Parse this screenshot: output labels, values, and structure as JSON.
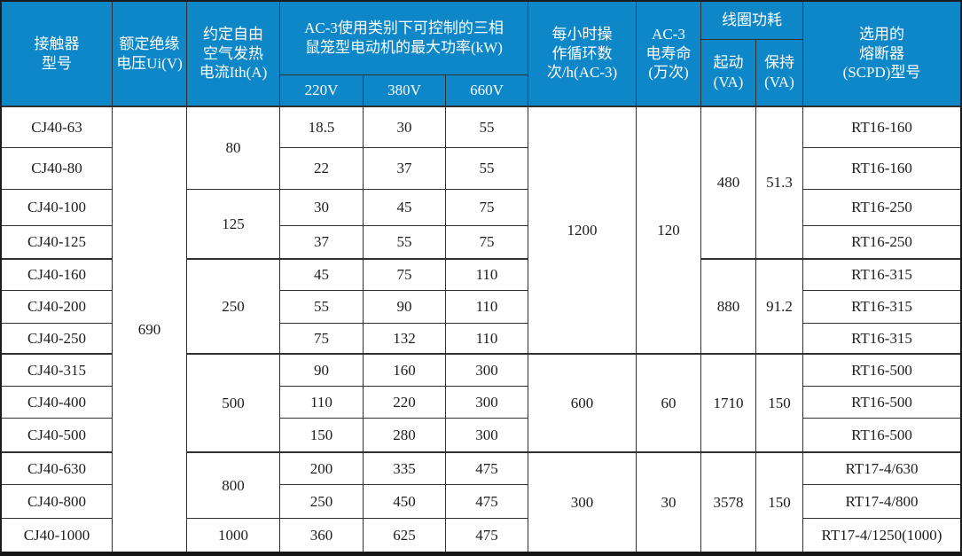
{
  "colors": {
    "header_bg": "#0E87C9",
    "header_text": "#FFFFFF",
    "body_text": "#1D1D1D",
    "grid_line": "#303030",
    "outer_border": "#1B1B1B"
  },
  "table": {
    "header_cells": [
      {
        "name": "col-header-contactor-model",
        "text": "接触器\n型号",
        "r": 1,
        "c": 1,
        "rs": 3,
        "cs": 1
      },
      {
        "name": "col-header-rated-insulation-voltage",
        "text": "额定绝缘\n电压Ui(V)",
        "r": 1,
        "c": 2,
        "rs": 3,
        "cs": 1
      },
      {
        "name": "col-header-thermal-current",
        "text": "约定自由\n空气发热\n电流Ith(A)",
        "r": 1,
        "c": 3,
        "rs": 3,
        "cs": 1
      },
      {
        "name": "col-header-ac3-max-power",
        "text": "AC-3使用类别下可控制的三相\n鼠笼型电动机的最大功率(kW)",
        "r": 1,
        "c": 4,
        "rs": 2,
        "cs": 3
      },
      {
        "name": "col-header-220v",
        "text": "220V",
        "r": 3,
        "c": 4,
        "rs": 1,
        "cs": 1
      },
      {
        "name": "col-header-380v",
        "text": "380V",
        "r": 3,
        "c": 5,
        "rs": 1,
        "cs": 1
      },
      {
        "name": "col-header-660v",
        "text": "660V",
        "r": 3,
        "c": 6,
        "rs": 1,
        "cs": 1
      },
      {
        "name": "col-header-operating-cycles",
        "text": "每小时操\n作循环数\n次/h(AC-3)",
        "r": 1,
        "c": 7,
        "rs": 3,
        "cs": 1
      },
      {
        "name": "col-header-electrical-life",
        "text": "AC-3\n电寿命\n(万次)",
        "r": 1,
        "c": 8,
        "rs": 3,
        "cs": 1
      },
      {
        "name": "col-header-coil-consumption",
        "text": "线圈功耗",
        "r": 1,
        "c": 9,
        "rs": 1,
        "cs": 2
      },
      {
        "name": "col-header-coil-start",
        "text": "起动\n(VA)",
        "r": 2,
        "c": 9,
        "rs": 2,
        "cs": 1
      },
      {
        "name": "col-header-coil-hold",
        "text": "保持\n(VA)",
        "r": 2,
        "c": 10,
        "rs": 2,
        "cs": 1
      },
      {
        "name": "col-header-fuse-type",
        "text": "选用的\n熔断器\n(SCPD)型号",
        "r": 1,
        "c": 11,
        "rs": 3,
        "cs": 1
      }
    ],
    "body_cells": [
      {
        "name": "model-cj40-63",
        "text": "CJ40-63",
        "r": 4,
        "c": 1,
        "rs": 1,
        "cs": 1
      },
      {
        "name": "model-cj40-80",
        "text": "CJ40-80",
        "r": 5,
        "c": 1,
        "rs": 1,
        "cs": 1
      },
      {
        "name": "model-cj40-100",
        "text": "CJ40-100",
        "r": 6,
        "c": 1,
        "rs": 1,
        "cs": 1
      },
      {
        "name": "model-cj40-125",
        "text": "CJ40-125",
        "r": 7,
        "c": 1,
        "rs": 1,
        "cs": 1
      },
      {
        "name": "model-cj40-160",
        "text": "CJ40-160",
        "r": 8,
        "c": 1,
        "rs": 1,
        "cs": 1
      },
      {
        "name": "model-cj40-200",
        "text": "CJ40-200",
        "r": 9,
        "c": 1,
        "rs": 1,
        "cs": 1
      },
      {
        "name": "model-cj40-250",
        "text": "CJ40-250",
        "r": 10,
        "c": 1,
        "rs": 1,
        "cs": 1
      },
      {
        "name": "model-cj40-315",
        "text": "CJ40-315",
        "r": 11,
        "c": 1,
        "rs": 1,
        "cs": 1
      },
      {
        "name": "model-cj40-400",
        "text": "CJ40-400",
        "r": 12,
        "c": 1,
        "rs": 1,
        "cs": 1
      },
      {
        "name": "model-cj40-500",
        "text": "CJ40-500",
        "r": 13,
        "c": 1,
        "rs": 1,
        "cs": 1
      },
      {
        "name": "model-cj40-630",
        "text": "CJ40-630",
        "r": 14,
        "c": 1,
        "rs": 1,
        "cs": 1
      },
      {
        "name": "model-cj40-800",
        "text": "CJ40-800",
        "r": 15,
        "c": 1,
        "rs": 1,
        "cs": 1
      },
      {
        "name": "model-cj40-1000",
        "text": "CJ40-1000",
        "r": 16,
        "c": 1,
        "rs": 1,
        "cs": 1
      },
      {
        "name": "rated-voltage-690",
        "text": "690",
        "r": 4,
        "c": 2,
        "rs": 13,
        "cs": 1
      },
      {
        "name": "ith-group-80",
        "text": "80",
        "r": 4,
        "c": 3,
        "rs": 2,
        "cs": 1
      },
      {
        "name": "ith-group-125",
        "text": "125",
        "r": 6,
        "c": 3,
        "rs": 2,
        "cs": 1
      },
      {
        "name": "ith-group-250",
        "text": "250",
        "r": 8,
        "c": 3,
        "rs": 3,
        "cs": 1
      },
      {
        "name": "ith-group-500",
        "text": "500",
        "r": 11,
        "c": 3,
        "rs": 3,
        "cs": 1
      },
      {
        "name": "ith-group-800",
        "text": "800",
        "r": 14,
        "c": 3,
        "rs": 2,
        "cs": 1
      },
      {
        "name": "ith-group-1000",
        "text": "1000",
        "r": 16,
        "c": 3,
        "rs": 1,
        "cs": 1
      },
      {
        "name": "power-220v-cj40-63",
        "text": "18.5",
        "r": 4,
        "c": 4,
        "rs": 1,
        "cs": 1
      },
      {
        "name": "power-380v-cj40-63",
        "text": "30",
        "r": 4,
        "c": 5,
        "rs": 1,
        "cs": 1
      },
      {
        "name": "power-660v-cj40-63",
        "text": "55",
        "r": 4,
        "c": 6,
        "rs": 1,
        "cs": 1
      },
      {
        "name": "power-220v-cj40-80",
        "text": "22",
        "r": 5,
        "c": 4,
        "rs": 1,
        "cs": 1
      },
      {
        "name": "power-380v-cj40-80",
        "text": "37",
        "r": 5,
        "c": 5,
        "rs": 1,
        "cs": 1
      },
      {
        "name": "power-660v-cj40-80",
        "text": "55",
        "r": 5,
        "c": 6,
        "rs": 1,
        "cs": 1
      },
      {
        "name": "power-220v-cj40-100",
        "text": "30",
        "r": 6,
        "c": 4,
        "rs": 1,
        "cs": 1
      },
      {
        "name": "power-380v-cj40-100",
        "text": "45",
        "r": 6,
        "c": 5,
        "rs": 1,
        "cs": 1
      },
      {
        "name": "power-660v-cj40-100",
        "text": "75",
        "r": 6,
        "c": 6,
        "rs": 1,
        "cs": 1
      },
      {
        "name": "power-220v-cj40-125",
        "text": "37",
        "r": 7,
        "c": 4,
        "rs": 1,
        "cs": 1
      },
      {
        "name": "power-380v-cj40-125",
        "text": "55",
        "r": 7,
        "c": 5,
        "rs": 1,
        "cs": 1
      },
      {
        "name": "power-660v-cj40-125",
        "text": "75",
        "r": 7,
        "c": 6,
        "rs": 1,
        "cs": 1
      },
      {
        "name": "power-220v-cj40-160",
        "text": "45",
        "r": 8,
        "c": 4,
        "rs": 1,
        "cs": 1
      },
      {
        "name": "power-380v-cj40-160",
        "text": "75",
        "r": 8,
        "c": 5,
        "rs": 1,
        "cs": 1
      },
      {
        "name": "power-660v-cj40-160",
        "text": "110",
        "r": 8,
        "c": 6,
        "rs": 1,
        "cs": 1
      },
      {
        "name": "power-220v-cj40-200",
        "text": "55",
        "r": 9,
        "c": 4,
        "rs": 1,
        "cs": 1
      },
      {
        "name": "power-380v-cj40-200",
        "text": "90",
        "r": 9,
        "c": 5,
        "rs": 1,
        "cs": 1
      },
      {
        "name": "power-660v-cj40-200",
        "text": "110",
        "r": 9,
        "c": 6,
        "rs": 1,
        "cs": 1
      },
      {
        "name": "power-220v-cj40-250",
        "text": "75",
        "r": 10,
        "c": 4,
        "rs": 1,
        "cs": 1
      },
      {
        "name": "power-380v-cj40-250",
        "text": "132",
        "r": 10,
        "c": 5,
        "rs": 1,
        "cs": 1
      },
      {
        "name": "power-660v-cj40-250",
        "text": "110",
        "r": 10,
        "c": 6,
        "rs": 1,
        "cs": 1
      },
      {
        "name": "power-220v-cj40-315",
        "text": "90",
        "r": 11,
        "c": 4,
        "rs": 1,
        "cs": 1
      },
      {
        "name": "power-380v-cj40-315",
        "text": "160",
        "r": 11,
        "c": 5,
        "rs": 1,
        "cs": 1
      },
      {
        "name": "power-660v-cj40-315",
        "text": "300",
        "r": 11,
        "c": 6,
        "rs": 1,
        "cs": 1
      },
      {
        "name": "power-220v-cj40-400",
        "text": "110",
        "r": 12,
        "c": 4,
        "rs": 1,
        "cs": 1
      },
      {
        "name": "power-380v-cj40-400",
        "text": "220",
        "r": 12,
        "c": 5,
        "rs": 1,
        "cs": 1
      },
      {
        "name": "power-660v-cj40-400",
        "text": "300",
        "r": 12,
        "c": 6,
        "rs": 1,
        "cs": 1
      },
      {
        "name": "power-220v-cj40-500",
        "text": "150",
        "r": 13,
        "c": 4,
        "rs": 1,
        "cs": 1
      },
      {
        "name": "power-380v-cj40-500",
        "text": "280",
        "r": 13,
        "c": 5,
        "rs": 1,
        "cs": 1
      },
      {
        "name": "power-660v-cj40-500",
        "text": "300",
        "r": 13,
        "c": 6,
        "rs": 1,
        "cs": 1
      },
      {
        "name": "power-220v-cj40-630",
        "text": "200",
        "r": 14,
        "c": 4,
        "rs": 1,
        "cs": 1
      },
      {
        "name": "power-380v-cj40-630",
        "text": "335",
        "r": 14,
        "c": 5,
        "rs": 1,
        "cs": 1
      },
      {
        "name": "power-660v-cj40-630",
        "text": "475",
        "r": 14,
        "c": 6,
        "rs": 1,
        "cs": 1
      },
      {
        "name": "power-220v-cj40-800",
        "text": "250",
        "r": 15,
        "c": 4,
        "rs": 1,
        "cs": 1
      },
      {
        "name": "power-380v-cj40-800",
        "text": "450",
        "r": 15,
        "c": 5,
        "rs": 1,
        "cs": 1
      },
      {
        "name": "power-660v-cj40-800",
        "text": "475",
        "r": 15,
        "c": 6,
        "rs": 1,
        "cs": 1
      },
      {
        "name": "power-220v-cj40-1000",
        "text": "360",
        "r": 16,
        "c": 4,
        "rs": 1,
        "cs": 1
      },
      {
        "name": "power-380v-cj40-1000",
        "text": "625",
        "r": 16,
        "c": 5,
        "rs": 1,
        "cs": 1
      },
      {
        "name": "power-660v-cj40-1000",
        "text": "475",
        "r": 16,
        "c": 6,
        "rs": 1,
        "cs": 1
      },
      {
        "name": "cycles-group-1200",
        "text": "1200",
        "r": 4,
        "c": 7,
        "rs": 7,
        "cs": 1
      },
      {
        "name": "cycles-group-600",
        "text": "600",
        "r": 11,
        "c": 7,
        "rs": 3,
        "cs": 1
      },
      {
        "name": "cycles-group-300",
        "text": "300",
        "r": 14,
        "c": 7,
        "rs": 3,
        "cs": 1
      },
      {
        "name": "life-group-120",
        "text": "120",
        "r": 4,
        "c": 8,
        "rs": 7,
        "cs": 1
      },
      {
        "name": "life-group-60",
        "text": "60",
        "r": 11,
        "c": 8,
        "rs": 3,
        "cs": 1
      },
      {
        "name": "life-group-30",
        "text": "30",
        "r": 14,
        "c": 8,
        "rs": 3,
        "cs": 1
      },
      {
        "name": "coil-start-group-480",
        "text": "480",
        "r": 4,
        "c": 9,
        "rs": 4,
        "cs": 1
      },
      {
        "name": "coil-start-group-880",
        "text": "880",
        "r": 8,
        "c": 9,
        "rs": 3,
        "cs": 1
      },
      {
        "name": "coil-start-group-1710",
        "text": "1710",
        "r": 11,
        "c": 9,
        "rs": 3,
        "cs": 1
      },
      {
        "name": "coil-start-group-3578",
        "text": "3578",
        "r": 14,
        "c": 9,
        "rs": 3,
        "cs": 1
      },
      {
        "name": "coil-hold-group-51-3",
        "text": "51.3",
        "r": 4,
        "c": 10,
        "rs": 4,
        "cs": 1
      },
      {
        "name": "coil-hold-group-91-2",
        "text": "91.2",
        "r": 8,
        "c": 10,
        "rs": 3,
        "cs": 1
      },
      {
        "name": "coil-hold-group-150-a",
        "text": "150",
        "r": 11,
        "c": 10,
        "rs": 3,
        "cs": 1
      },
      {
        "name": "coil-hold-group-150-b",
        "text": "150",
        "r": 14,
        "c": 10,
        "rs": 3,
        "cs": 1
      },
      {
        "name": "fuse-cj40-63",
        "text": "RT16-160",
        "r": 4,
        "c": 11,
        "rs": 1,
        "cs": 1
      },
      {
        "name": "fuse-cj40-80",
        "text": "RT16-160",
        "r": 5,
        "c": 11,
        "rs": 1,
        "cs": 1
      },
      {
        "name": "fuse-cj40-100",
        "text": "RT16-250",
        "r": 6,
        "c": 11,
        "rs": 1,
        "cs": 1
      },
      {
        "name": "fuse-cj40-125",
        "text": "RT16-250",
        "r": 7,
        "c": 11,
        "rs": 1,
        "cs": 1
      },
      {
        "name": "fuse-cj40-160",
        "text": "RT16-315",
        "r": 8,
        "c": 11,
        "rs": 1,
        "cs": 1
      },
      {
        "name": "fuse-cj40-200",
        "text": "RT16-315",
        "r": 9,
        "c": 11,
        "rs": 1,
        "cs": 1
      },
      {
        "name": "fuse-cj40-250",
        "text": "RT16-315",
        "r": 10,
        "c": 11,
        "rs": 1,
        "cs": 1
      },
      {
        "name": "fuse-cj40-315",
        "text": "RT16-500",
        "r": 11,
        "c": 11,
        "rs": 1,
        "cs": 1
      },
      {
        "name": "fuse-cj40-400",
        "text": "RT16-500",
        "r": 12,
        "c": 11,
        "rs": 1,
        "cs": 1
      },
      {
        "name": "fuse-cj40-500",
        "text": "RT16-500",
        "r": 13,
        "c": 11,
        "rs": 1,
        "cs": 1
      },
      {
        "name": "fuse-cj40-630",
        "text": "RT17-4/630",
        "r": 14,
        "c": 11,
        "rs": 1,
        "cs": 1
      },
      {
        "name": "fuse-cj40-800",
        "text": "RT17-4/800",
        "r": 15,
        "c": 11,
        "rs": 1,
        "cs": 1
      },
      {
        "name": "fuse-cj40-1000",
        "text": "RT17-4/1250(1000)",
        "r": 16,
        "c": 11,
        "rs": 1,
        "cs": 1
      }
    ]
  }
}
